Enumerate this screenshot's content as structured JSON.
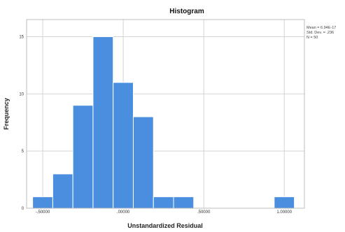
{
  "chart_data": {
    "type": "bar",
    "title": "Histogram",
    "xlabel": "Unstandardized Residual",
    "ylabel": "Frequency",
    "x_ticks": [
      {
        "value": -0.5,
        "label": "-.50000"
      },
      {
        "value": 0.0,
        "label": ".00000"
      },
      {
        "value": 0.5,
        "label": ".50000"
      },
      {
        "value": 1.0,
        "label": "1.00000"
      }
    ],
    "y_ticks": [
      0,
      5,
      10,
      15
    ],
    "xlim": [
      -0.6,
      1.125
    ],
    "ylim": [
      0,
      16.5
    ],
    "grid": true,
    "bin_width": 0.125,
    "bins": [
      {
        "start": -0.5625,
        "end": -0.4375,
        "count": 1
      },
      {
        "start": -0.4375,
        "end": -0.3125,
        "count": 3
      },
      {
        "start": -0.3125,
        "end": -0.1875,
        "count": 9
      },
      {
        "start": -0.1875,
        "end": -0.0625,
        "count": 15
      },
      {
        "start": -0.0625,
        "end": 0.0625,
        "count": 11
      },
      {
        "start": 0.0625,
        "end": 0.1875,
        "count": 8
      },
      {
        "start": 0.1875,
        "end": 0.3125,
        "count": 1
      },
      {
        "start": 0.3125,
        "end": 0.4375,
        "count": 1
      },
      {
        "start": 0.9375,
        "end": 1.0625,
        "count": 1
      }
    ],
    "stats": {
      "mean": "Mean = 6.94E-17",
      "std_dev": "Std. Dev. = .236",
      "n": "N = 50"
    },
    "bar_color": "#4a8ee0"
  }
}
